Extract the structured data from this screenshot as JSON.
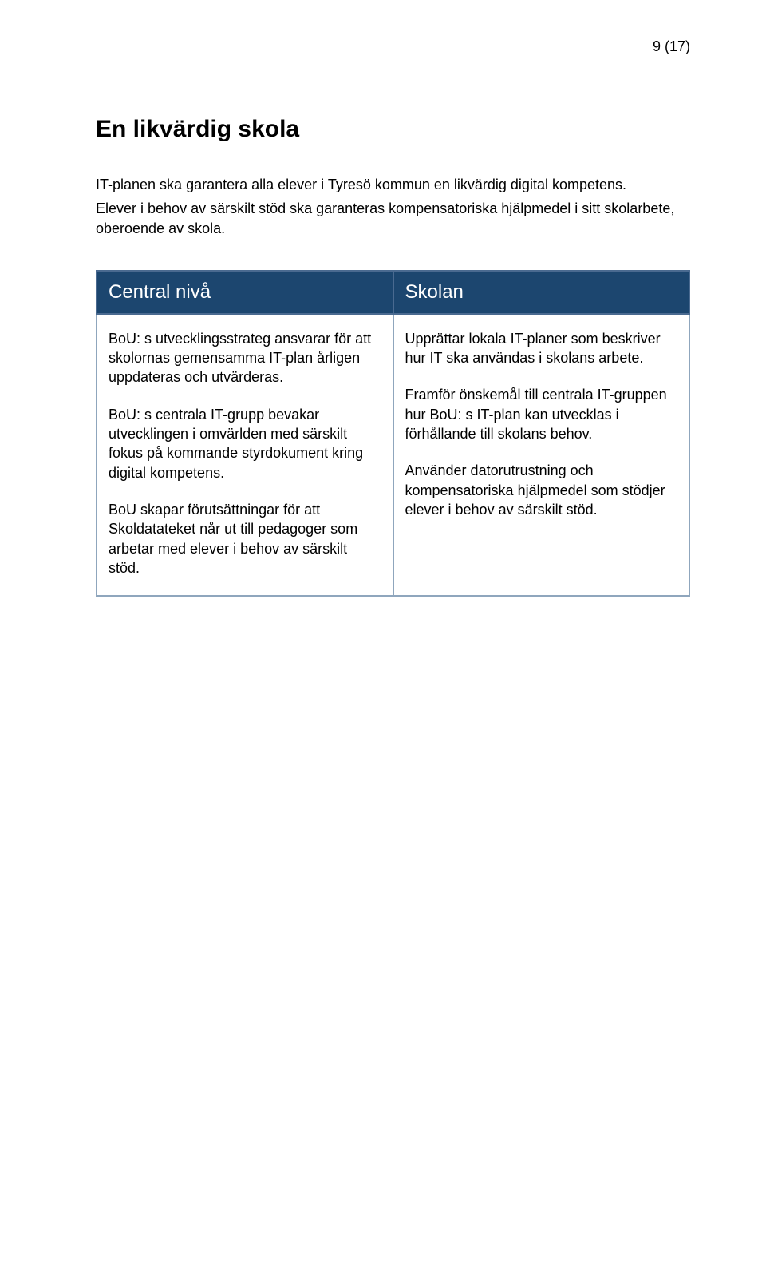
{
  "pageNumber": "9 (17)",
  "heading": "En likvärdig skola",
  "intro": {
    "p1": "IT-planen ska garantera alla elever i Tyresö kommun en likvärdig digital kompetens.",
    "p2": "Elever i behov av särskilt stöd ska garanteras kompensatoriska hjälpmedel i sitt skolarbete, oberoende av skola."
  },
  "table": {
    "header": {
      "col1": "Central nivå",
      "col2": "Skolan"
    },
    "left": {
      "p1": "BoU: s utvecklingsstrateg ansvarar för att skolornas gemensamma IT-plan årligen uppdateras och utvärderas.",
      "p2": "BoU: s centrala IT-grupp bevakar utvecklingen i omvärlden med särskilt fokus på kommande styrdokument kring digital kompetens.",
      "p3": "BoU skapar förutsättningar för att Skoldatateket når ut till pedagoger som arbetar med elever i behov av särskilt stöd."
    },
    "right": {
      "p1": "Upprättar lokala IT-planer som beskriver hur IT ska användas i skolans arbete.",
      "p2": "Framför önskemål till centrala IT-gruppen hur BoU: s IT-plan kan utvecklas i förhållande till skolans behov.",
      "p3": "Använder datorutrustning och kompensatoriska hjälpmedel som stödjer elever i behov av särskilt stöd."
    }
  },
  "colors": {
    "headerBg": "#1c466f",
    "headerText": "#ffffff",
    "cellBorder": "#8fa6bd",
    "bodyText": "#000000",
    "pageBg": "#ffffff"
  },
  "typography": {
    "headingSizePt": 22,
    "bodySizePt": 13,
    "tableHeaderSizePt": 18,
    "fontFamily": "Arial"
  }
}
